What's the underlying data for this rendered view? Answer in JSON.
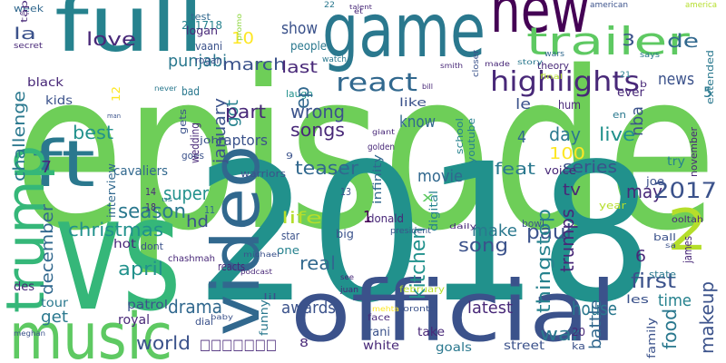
{
  "words": [
    "episode",
    "2018",
    "vs",
    "official",
    "game",
    "new",
    "full",
    "ft",
    "music",
    "trailer",
    "video",
    "trump",
    "2",
    "highlights",
    "react",
    "punjabi",
    "love",
    "la",
    "week",
    "201718",
    "show",
    "march",
    "last",
    "10",
    "people",
    "3",
    "de",
    "news",
    "5",
    "le",
    "know",
    "wrong",
    "songs",
    "best",
    "day",
    "4",
    "live",
    "100",
    "nba",
    "teaser",
    "feat",
    "series",
    "movie",
    "super",
    "season",
    "christmas",
    "hd",
    "tv",
    "may",
    "2017",
    "life",
    "paul",
    "make",
    "song",
    "6",
    "first",
    "time",
    "real",
    "awards",
    "april",
    "get",
    "drama",
    "latest",
    "house",
    "world",
    "war",
    "white",
    "rani",
    "take",
    "goals",
    "street",
    "tour",
    "royal",
    "patrol",
    "hot",
    "des",
    "kids",
    "black",
    "bad",
    "ever",
    "laugh",
    "like",
    "hum",
    "en",
    "try",
    "joe",
    "donald",
    "star",
    "one",
    "big",
    "digital",
    "year",
    "ball",
    "james",
    "state",
    "les",
    "dont",
    "reacts",
    "podcast",
    "face",
    "toronto",
    "mehta",
    "february",
    "theory",
    "story",
    "made",
    "american",
    "america",
    "wars",
    "says",
    "b",
    "21",
    "extended",
    "november",
    "8",
    "20",
    "ka",
    "family",
    "makeup",
    "food",
    "battle",
    "kitchen",
    "thingstop",
    "trumps",
    "january",
    "got",
    "part",
    "ep",
    "x",
    "1",
    "7",
    "14",
    "18",
    "11",
    "9",
    "13",
    "12",
    "infinity",
    "school",
    "youtube",
    "cavaliers",
    "warriors",
    "goes",
    "voice",
    "wedding",
    "gets",
    "interview",
    "challenge",
    "december",
    "john",
    "raptors",
    "golden",
    "giant",
    "22",
    "et",
    "president",
    "closer",
    "smith",
    "bill",
    "vaani",
    "logan",
    "rogan",
    "test",
    "secret",
    "never",
    "promo",
    "tập",
    "watch",
    "□□□□□□□",
    "funny",
    "dial",
    "chashmah",
    "bowl",
    "ooltah",
    "man",
    "meghan",
    "baby",
    "see",
    "juan",
    "michael",
    "us",
    "daily",
    "sa",
    "final",
    "talent",
    "lil"
  ]
}
